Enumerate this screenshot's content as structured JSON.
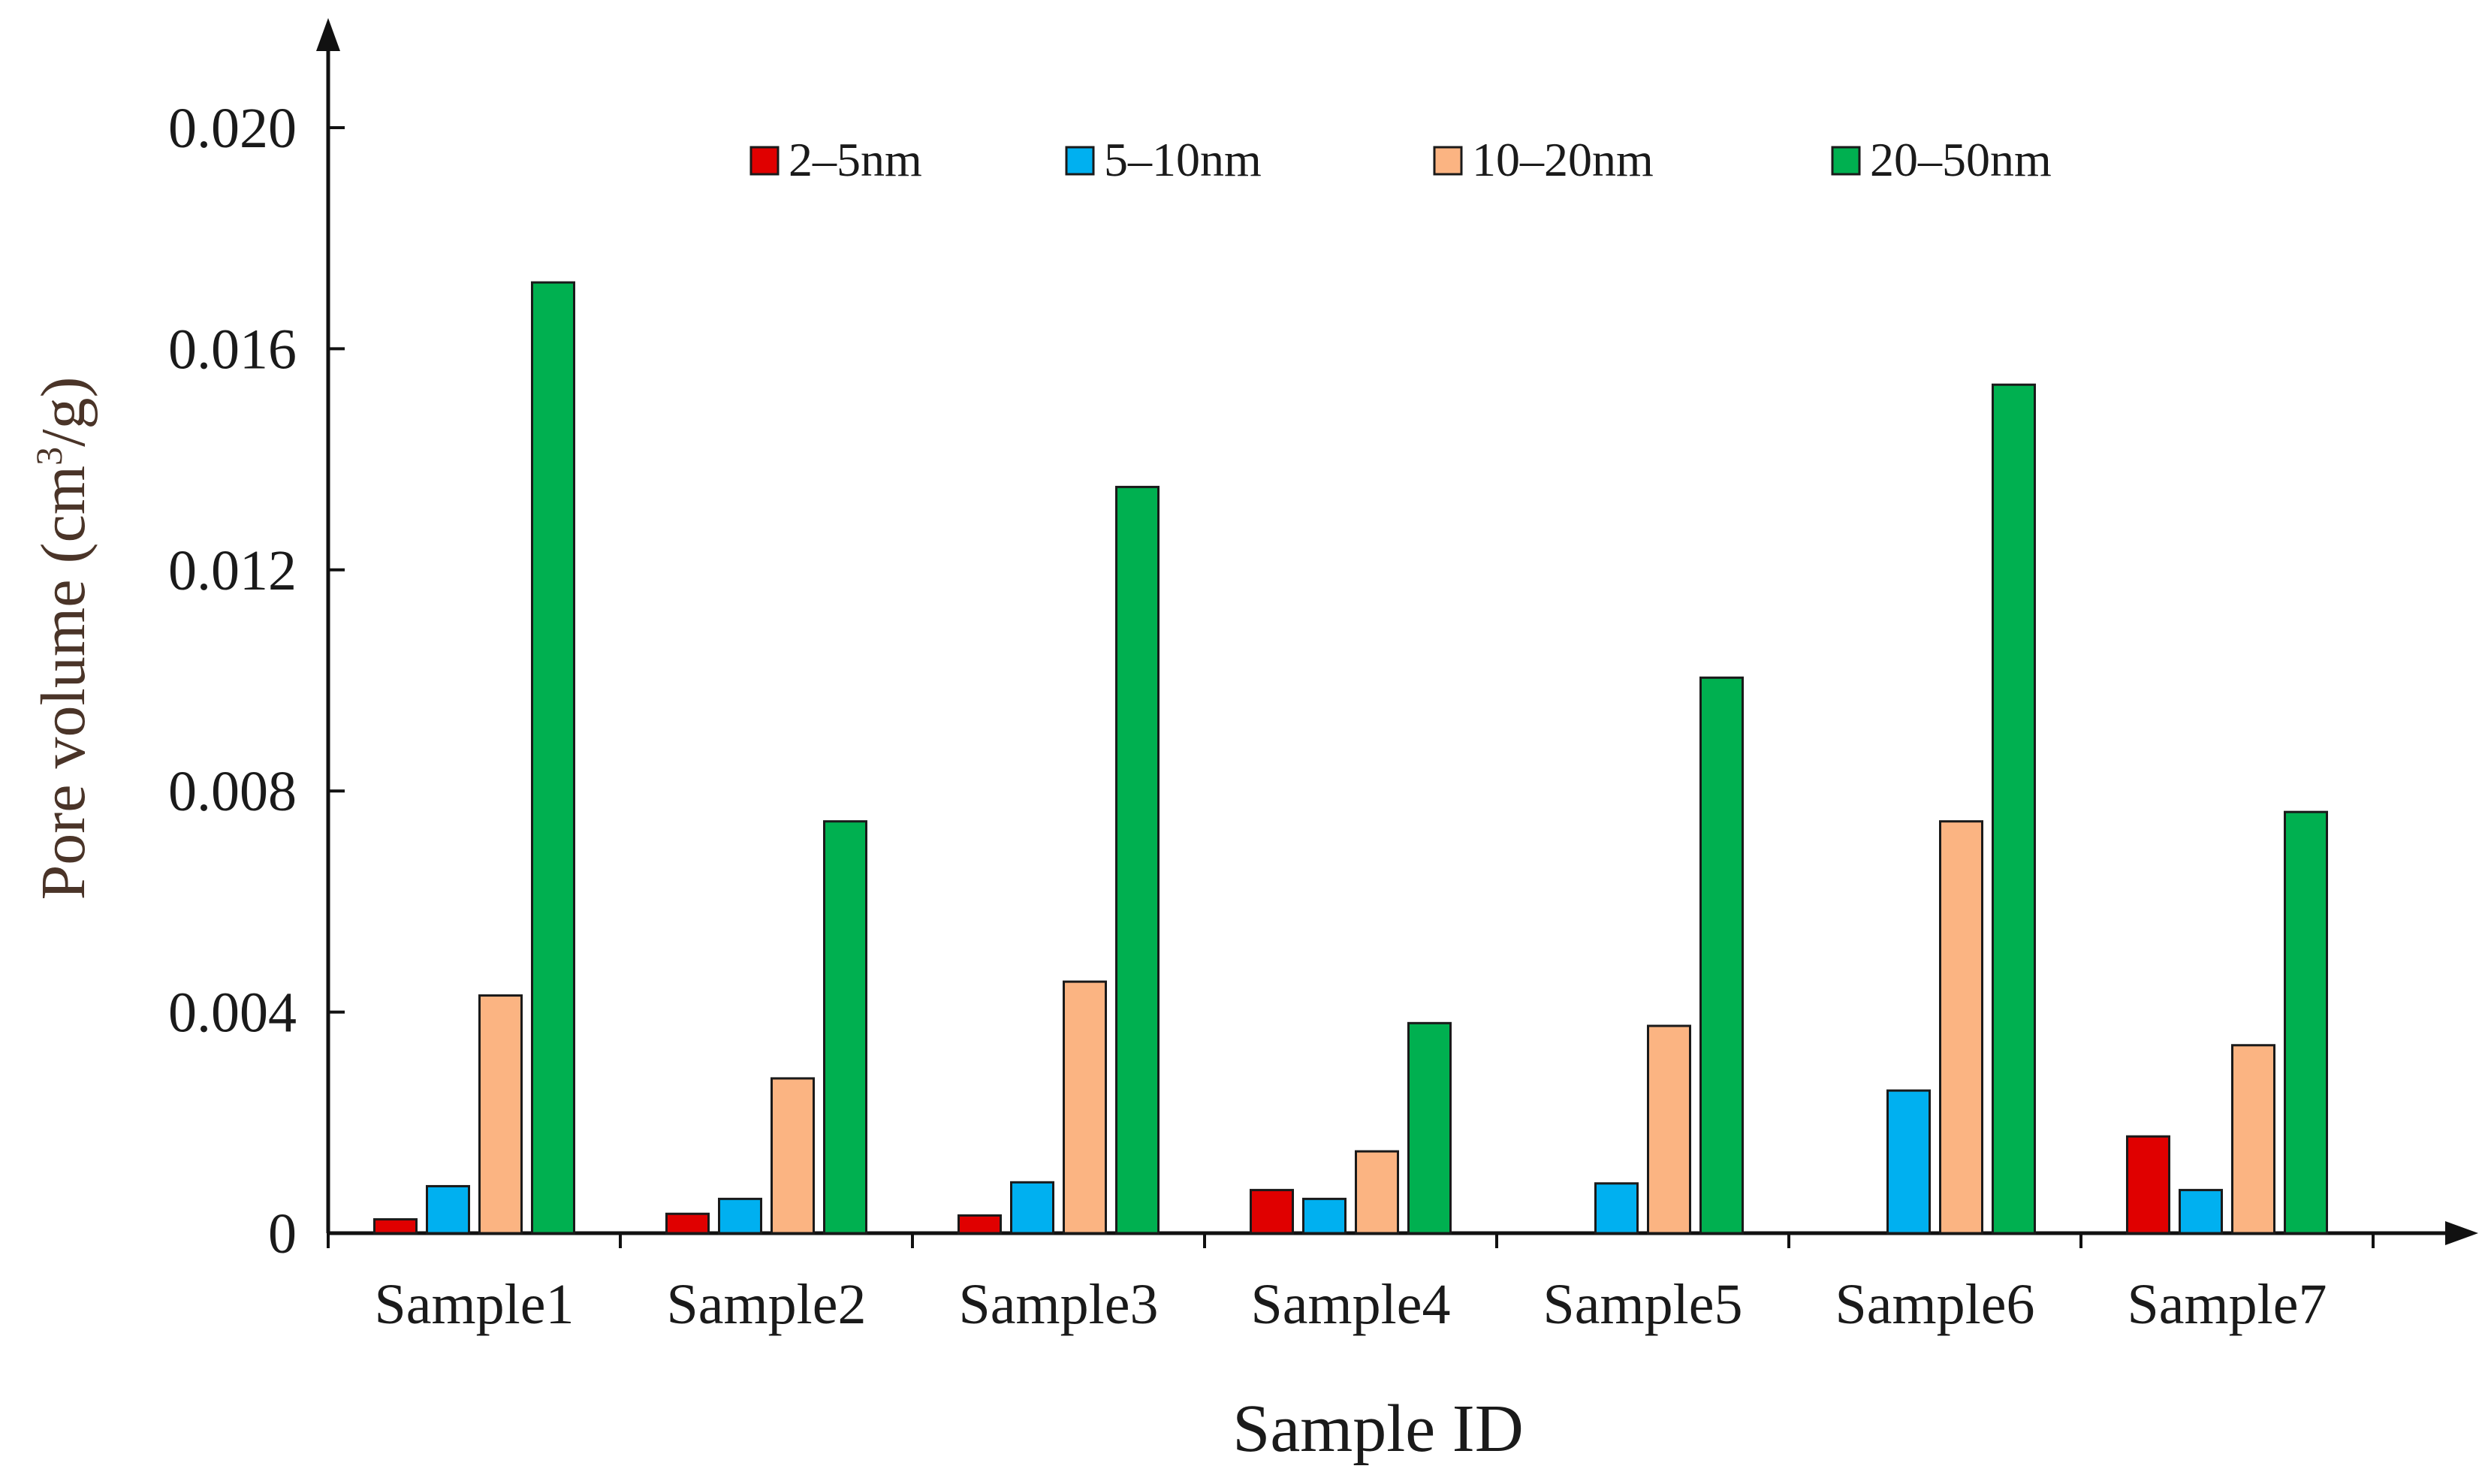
{
  "chart_data": {
    "type": "bar",
    "title": "",
    "xlabel": "Sample ID",
    "ylabel_main": "Pore volume (cm",
    "ylabel_sup": "3",
    "ylabel_end": "/g)",
    "ylim": [
      0,
      0.022
    ],
    "yticks": [
      0,
      0.004,
      0.008,
      0.012,
      0.016,
      0.02
    ],
    "ytick_labels": [
      "0",
      "0.004",
      "0.008",
      "0.012",
      "0.016",
      "0.020"
    ],
    "categories": [
      "Sample1",
      "Sample2",
      "Sample3",
      "Sample4",
      "Sample5",
      "Sample6",
      "Sample7"
    ],
    "legend_position": "top",
    "series": [
      {
        "name": "2–5nm",
        "color": "#e00000",
        "values": [
          0.00025,
          0.00035,
          0.00032,
          0.00078,
          0,
          0,
          0.00175
        ]
      },
      {
        "name": "5–10nm",
        "color": "#00b0f0",
        "values": [
          0.00085,
          0.00062,
          0.00092,
          0.00062,
          0.0009,
          0.00258,
          0.00078
        ]
      },
      {
        "name": "10–20nm",
        "color": "#fbb482",
        "values": [
          0.0043,
          0.0028,
          0.00455,
          0.00148,
          0.00375,
          0.00745,
          0.0034
        ]
      },
      {
        "name": "20–50nm",
        "color": "#00b050",
        "values": [
          0.0172,
          0.00745,
          0.0135,
          0.0038,
          0.01005,
          0.01535,
          0.00762
        ]
      }
    ]
  }
}
